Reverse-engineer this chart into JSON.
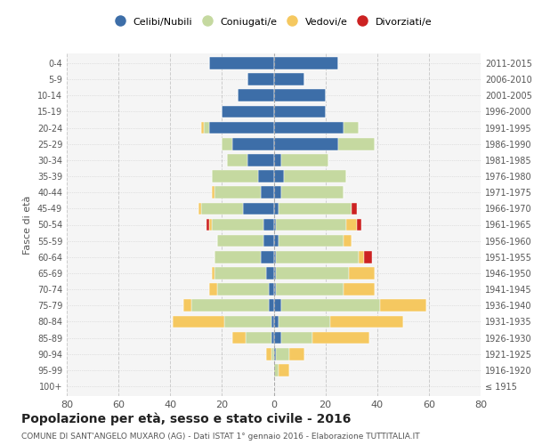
{
  "age_groups": [
    "100+",
    "95-99",
    "90-94",
    "85-89",
    "80-84",
    "75-79",
    "70-74",
    "65-69",
    "60-64",
    "55-59",
    "50-54",
    "45-49",
    "40-44",
    "35-39",
    "30-34",
    "25-29",
    "20-24",
    "15-19",
    "10-14",
    "5-9",
    "0-4"
  ],
  "birth_years": [
    "≤ 1915",
    "1916-1920",
    "1921-1925",
    "1926-1930",
    "1931-1935",
    "1936-1940",
    "1941-1945",
    "1946-1950",
    "1951-1955",
    "1956-1960",
    "1961-1965",
    "1966-1970",
    "1971-1975",
    "1976-1980",
    "1981-1985",
    "1986-1990",
    "1991-1995",
    "1996-2000",
    "2001-2005",
    "2006-2010",
    "2011-2015"
  ],
  "males": {
    "celibe": [
      0,
      0,
      0,
      1,
      1,
      2,
      2,
      3,
      5,
      4,
      4,
      12,
      5,
      6,
      10,
      16,
      25,
      20,
      14,
      10,
      25
    ],
    "coniugato": [
      0,
      0,
      1,
      10,
      18,
      30,
      20,
      20,
      18,
      18,
      20,
      16,
      18,
      18,
      8,
      4,
      2,
      0,
      0,
      0,
      0
    ],
    "vedovo": [
      0,
      0,
      2,
      5,
      20,
      3,
      3,
      1,
      0,
      0,
      1,
      1,
      1,
      0,
      0,
      0,
      1,
      0,
      0,
      0,
      0
    ],
    "divorziato": [
      0,
      0,
      0,
      0,
      0,
      0,
      0,
      0,
      0,
      0,
      1,
      0,
      0,
      0,
      0,
      0,
      0,
      0,
      0,
      0,
      0
    ]
  },
  "females": {
    "nubile": [
      0,
      0,
      1,
      3,
      2,
      3,
      1,
      1,
      1,
      2,
      1,
      2,
      3,
      4,
      3,
      25,
      27,
      20,
      20,
      12,
      25
    ],
    "coniugata": [
      0,
      2,
      5,
      12,
      20,
      38,
      26,
      28,
      32,
      25,
      27,
      28,
      24,
      24,
      18,
      14,
      6,
      0,
      0,
      0,
      0
    ],
    "vedova": [
      0,
      4,
      6,
      22,
      28,
      18,
      12,
      10,
      2,
      3,
      4,
      0,
      0,
      0,
      0,
      0,
      0,
      0,
      0,
      0,
      0
    ],
    "divorziata": [
      0,
      0,
      0,
      0,
      0,
      0,
      0,
      0,
      3,
      0,
      2,
      2,
      0,
      0,
      0,
      0,
      0,
      0,
      0,
      0,
      0
    ]
  },
  "colors": {
    "celibe": "#3D6EA8",
    "coniugato": "#C5D9A0",
    "vedovo": "#F5C860",
    "divorziato": "#CC2222"
  },
  "title": "Popolazione per età, sesso e stato civile - 2016",
  "subtitle": "COMUNE DI SANT'ANGELO MUXARO (AG) - Dati ISTAT 1° gennaio 2016 - Elaborazione TUTTITALIA.IT",
  "ylabel_left": "Fasce di età",
  "xlim": 80,
  "bg_color": "#ffffff",
  "grid_color": "#cccccc",
  "legend_labels": [
    "Celibi/Nubili",
    "Coniugati/e",
    "Vedovi/e",
    "Divorziati/e"
  ]
}
